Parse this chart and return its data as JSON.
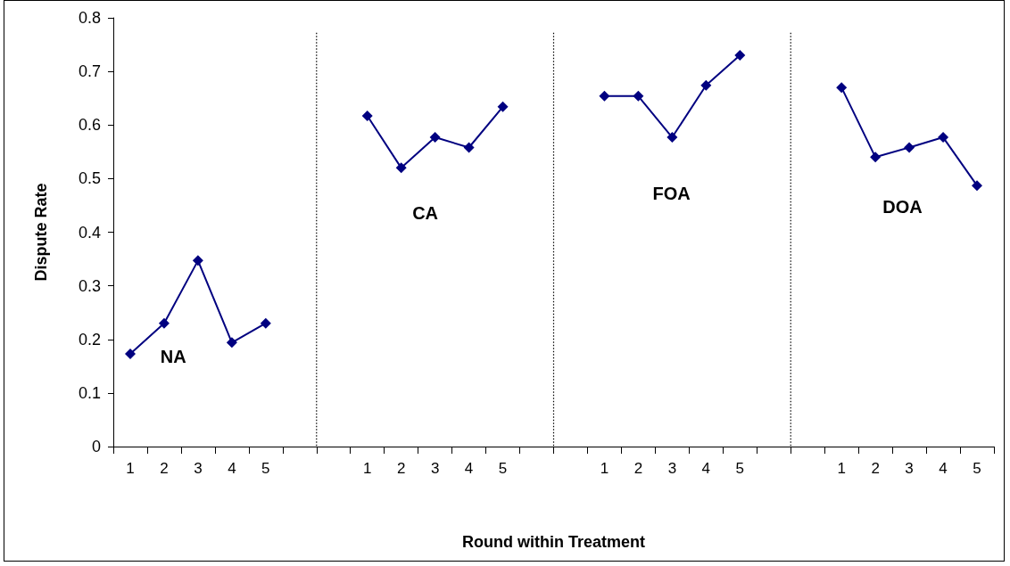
{
  "chart_data": {
    "type": "line",
    "xlabel": "Round within Treatment",
    "ylabel": "Dispute Rate",
    "categories": [
      "1",
      "2",
      "3",
      "4",
      "5",
      null,
      null,
      "1",
      "2",
      "3",
      "4",
      "5",
      null,
      null,
      "1",
      "2",
      "3",
      "4",
      "5",
      null,
      null,
      "1",
      "2",
      "3",
      "4",
      "5"
    ],
    "series": [
      {
        "color": "#000080",
        "values": [
          0.173,
          0.23,
          0.347,
          0.194,
          0.23,
          null,
          null,
          0.617,
          0.52,
          0.577,
          0.558,
          0.634,
          null,
          null,
          0.654,
          0.654,
          0.577,
          0.674,
          0.73,
          null,
          null,
          0.67,
          0.54,
          0.558,
          0.577,
          0.487
        ]
      }
    ],
    "ylim": [
      0,
      0.8
    ],
    "yticks": [
      0,
      0.1,
      0.2,
      0.3,
      0.4,
      0.5,
      0.6,
      0.7,
      0.8
    ],
    "annotations": [
      "NA",
      "CA",
      "FOA",
      "DOA"
    ],
    "grid": false,
    "marker": "diamond",
    "line_style": "solid"
  }
}
